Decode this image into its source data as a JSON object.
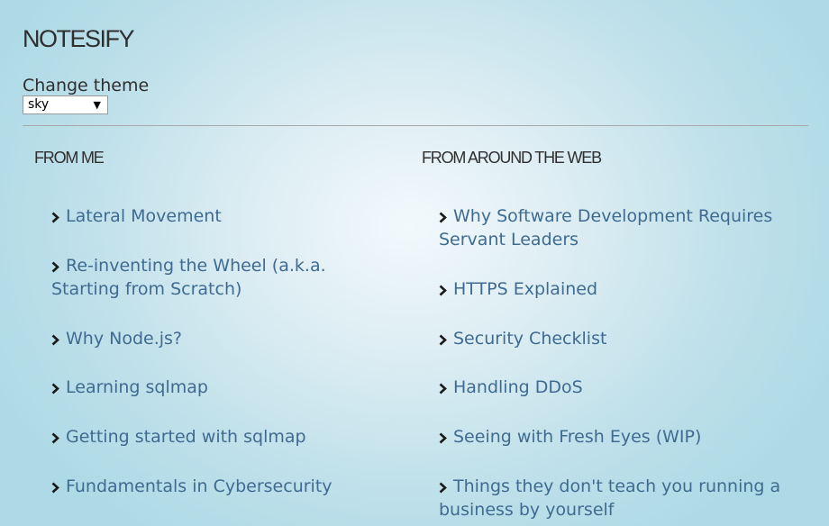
{
  "header": {
    "title": "NOTESIFY"
  },
  "theme": {
    "label": "Change theme",
    "selected": "sky"
  },
  "columns": [
    {
      "heading": "FROM ME",
      "links": [
        "Lateral Movement",
        "Re-inventing the Wheel (a.k.a. Starting from Scratch)",
        "Why Node.js?",
        "Learning sqlmap",
        "Getting started with sqlmap",
        "Fundamentals in Cybersecurity"
      ]
    },
    {
      "heading": "FROM AROUND THE WEB",
      "links": [
        "Why Software Development Requires Servant Leaders",
        "HTTPS Explained",
        "Security Checklist",
        "Handling DDoS",
        "Seeing with Fresh Eyes (WIP)",
        "Things they don't teach you running a business by yourself"
      ]
    }
  ],
  "icons": {
    "bullet": "chevron-right-icon"
  },
  "colors": {
    "link": "#3f6b91",
    "text": "#2f2f2f",
    "background": "#addae6"
  }
}
